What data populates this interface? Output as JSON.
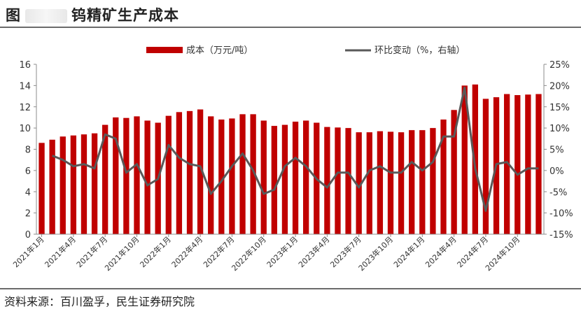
{
  "header": {
    "figure_label": "图",
    "title": "钨精矿生产成本"
  },
  "footer": {
    "source": "资料来源：百川盈孚，民生证券研究院"
  },
  "colors": {
    "bar": "#c00000",
    "line": "#595959",
    "axis": "#8c8c8c",
    "rule": "#6b6b6b"
  },
  "chart_data": {
    "type": "bar",
    "legend_position": "top",
    "grid": false,
    "categories": [
      "2021年1月",
      "2021年2月",
      "2021年3月",
      "2021年4月",
      "2021年5月",
      "2021年6月",
      "2021年7月",
      "2021年8月",
      "2021年9月",
      "2021年10月",
      "2021年11月",
      "2021年12月",
      "2022年1月",
      "2022年2月",
      "2022年3月",
      "2022年4月",
      "2022年5月",
      "2022年6月",
      "2022年7月",
      "2022年8月",
      "2022年9月",
      "2022年10月",
      "2022年11月",
      "2022年12月",
      "2023年1月",
      "2023年2月",
      "2023年3月",
      "2023年4月",
      "2023年5月",
      "2023年6月",
      "2023年7月",
      "2023年8月",
      "2023年9月",
      "2023年10月",
      "2023年11月",
      "2023年12月",
      "2024年1月",
      "2024年2月",
      "2024年3月",
      "2024年4月",
      "2024年5月",
      "2024年6月",
      "2024年7月",
      "2024年8月",
      "2024年9月",
      "2024年10月",
      "2024年11月",
      "2024年12月"
    ],
    "x_tick_labels": [
      "2021年1月",
      "2021年4月",
      "2021年7月",
      "2021年10月",
      "2022年1月",
      "2022年4月",
      "2022年7月",
      "2022年10月",
      "2023年1月",
      "2023年4月",
      "2023年7月",
      "2023年10月",
      "2024年1月",
      "2024年4月",
      "2024年7月",
      "2024年10月"
    ],
    "x_tick_every": 3,
    "series": [
      {
        "name": "成本（万元/吨）",
        "type": "bar",
        "axis": "left",
        "values": [
          8.6,
          8.9,
          9.2,
          9.3,
          9.4,
          9.5,
          10.3,
          11.0,
          10.95,
          11.1,
          10.7,
          10.5,
          11.15,
          11.5,
          11.6,
          11.75,
          11.1,
          10.8,
          10.9,
          11.3,
          11.3,
          10.7,
          10.2,
          10.3,
          10.6,
          10.7,
          10.5,
          10.1,
          10.05,
          10.0,
          9.6,
          9.6,
          9.7,
          9.65,
          9.6,
          9.8,
          9.8,
          10.0,
          10.8,
          11.7,
          14.0,
          14.1,
          12.75,
          12.9,
          13.2,
          13.1,
          13.15,
          13.2
        ]
      },
      {
        "name": "环比变动（%，右轴）",
        "type": "line",
        "axis": "right",
        "values": [
          null,
          3.5,
          2.5,
          1.0,
          1.5,
          0.5,
          8.5,
          7.5,
          -0.5,
          1.5,
          -3.5,
          -2.0,
          6.0,
          3.0,
          1.5,
          1.0,
          -5.5,
          -2.5,
          1.0,
          4.0,
          0.0,
          -5.5,
          -4.5,
          1.0,
          3.0,
          1.0,
          -2.0,
          -4.0,
          -0.5,
          -0.5,
          -4.0,
          0.0,
          1.0,
          -0.5,
          -0.5,
          2.0,
          0.0,
          2.0,
          8.0,
          8.0,
          19.5,
          0.5,
          -9.5,
          1.5,
          2.0,
          -1.0,
          0.5,
          0.5
        ]
      }
    ],
    "y_left": {
      "min": 0,
      "max": 16,
      "ticks": [
        "0",
        "2",
        "4",
        "6",
        "8",
        "10",
        "12",
        "14",
        "16"
      ]
    },
    "y_right": {
      "min": -15,
      "max": 25,
      "ticks": [
        "-15%",
        "-10%",
        "-5%",
        "0%",
        "5%",
        "10%",
        "15%",
        "20%",
        "25%"
      ]
    }
  }
}
